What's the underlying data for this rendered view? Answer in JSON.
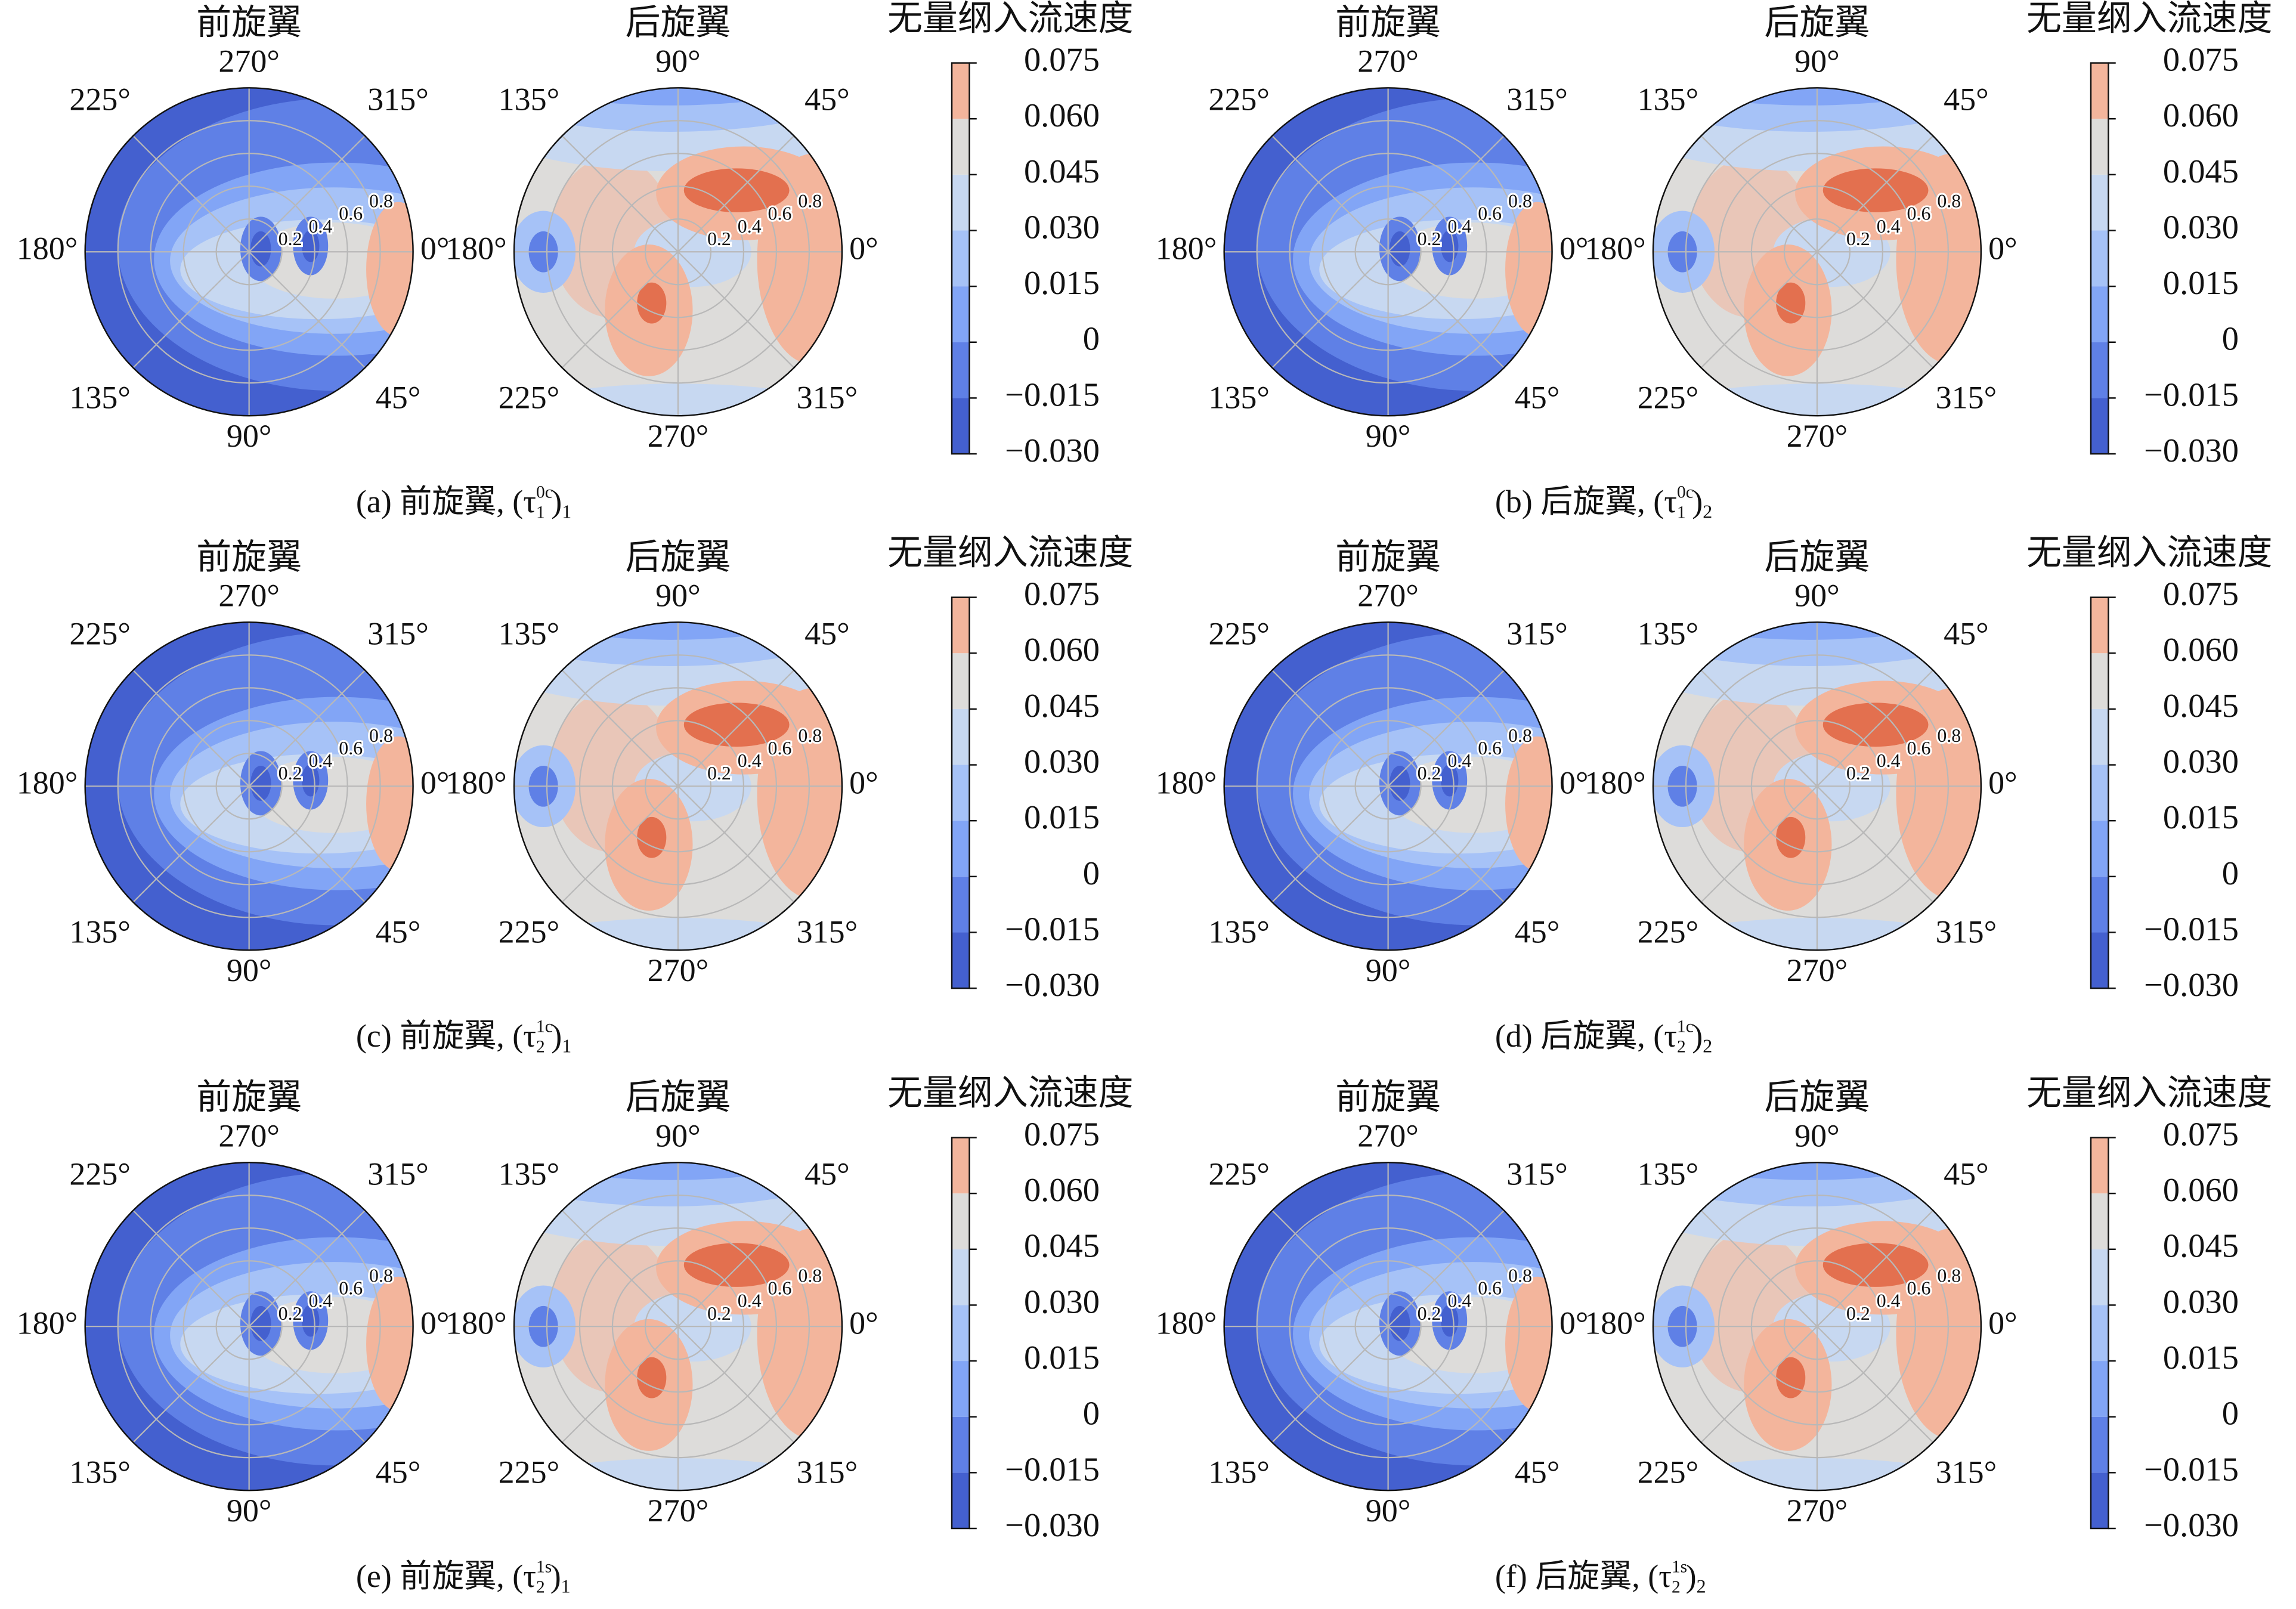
{
  "chart_data": {
    "type": "polar-contour",
    "colorbar": {
      "title": "无量纲入流速度",
      "clim": [
        -0.03,
        0.075
      ],
      "ticks": [
        {
          "value": -0.03,
          "label": "−0.030"
        },
        {
          "value": -0.015,
          "label": "−0.015"
        },
        0,
        0.015,
        {
          "value": 0.03,
          "label": "0.030"
        },
        0.045,
        {
          "value": 0.06,
          "label": "0.060"
        },
        0.075
      ],
      "colors": [
        "#4460cf",
        "#5f80e6",
        "#82a5f6",
        "#a6c2f7",
        "#c7d8f1",
        "#dddcda",
        "#f3b59c"
      ]
    },
    "rotors": [
      {
        "title": "前旋翼",
        "direction": "clockwise",
        "rlim": [
          0,
          1
        ],
        "rticks": [
          0.2,
          0.4,
          0.6,
          0.8
        ],
        "rlabel_position": 22.5,
        "thetaticks": [
          {
            "value": 0,
            "label": "0°"
          },
          {
            "value": 45,
            "label": "45°"
          },
          {
            "value": 90,
            "label": "90°"
          },
          {
            "value": 135,
            "label": "135°"
          },
          {
            "value": 180,
            "label": "180°"
          },
          {
            "value": 225,
            "label": "225°"
          },
          {
            "value": 270,
            "label": "270°"
          },
          {
            "value": 315,
            "label": "315°"
          }
        ]
      },
      {
        "title": "后旋翼",
        "direction": "counterclockwise",
        "rlim": [
          0,
          1
        ],
        "rticks": [
          0.2,
          0.4,
          0.6,
          0.8
        ],
        "rlabel_position": 22.5,
        "thetaticks": [
          {
            "value": 0,
            "label": "0°"
          },
          {
            "value": 45,
            "label": "45°"
          },
          {
            "value": 90,
            "label": "90°"
          },
          {
            "value": 135,
            "label": "135°"
          },
          {
            "value": 180,
            "label": "180°"
          },
          {
            "value": 225,
            "label": "225°"
          },
          {
            "value": 270,
            "label": "270°"
          },
          {
            "value": 315,
            "label": "315°"
          }
        ]
      }
    ],
    "panels": [
      {
        "caption": {
          "label": "(a) 前旋翼, (τ",
          "sup": "0c",
          "sub": "1",
          "close": ")",
          "outer": "1"
        }
      },
      {
        "caption": {
          "label": "(b) 后旋翼, (τ",
          "sup": "0c",
          "sub": "1",
          "close": ")",
          "outer": "2"
        }
      },
      {
        "caption": {
          "label": "(c) 前旋翼, (τ",
          "sup": "1c",
          "sub": "2",
          "close": ")",
          "outer": "1"
        }
      },
      {
        "caption": {
          "label": "(d) 后旋翼, (τ",
          "sup": "1c",
          "sub": "2",
          "close": ")",
          "outer": "2"
        }
      },
      {
        "caption": {
          "label": "(e) 前旋翼, (τ",
          "sup": "1s",
          "sub": "2",
          "close": ")",
          "outer": "1"
        }
      },
      {
        "caption": {
          "label": "(f) 后旋翼, (τ",
          "sup": "1s",
          "sub": "2",
          "close": ")",
          "outer": "2"
        }
      }
    ]
  }
}
